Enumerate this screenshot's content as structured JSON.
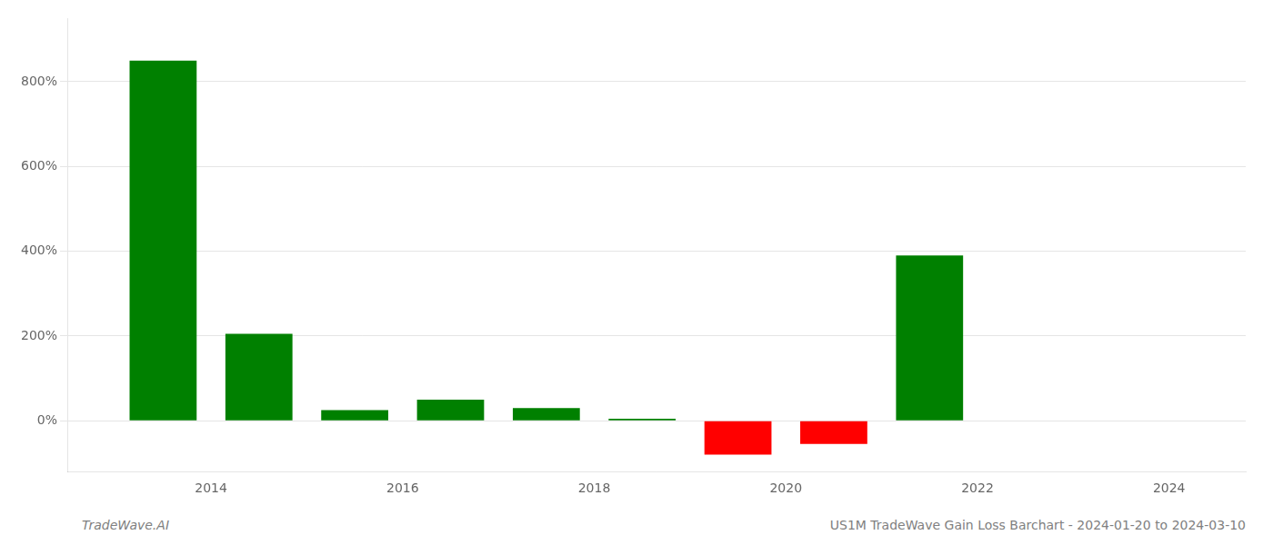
{
  "chart_data": {
    "type": "bar",
    "x": [
      2013.5,
      2014.5,
      2015.5,
      2016.5,
      2017.5,
      2018.5,
      2019.5,
      2020.5,
      2021.5
    ],
    "values": [
      850,
      205,
      25,
      50,
      30,
      5,
      -80,
      -55,
      390
    ],
    "colors": [
      "#008000",
      "#008000",
      "#008000",
      "#008000",
      "#008000",
      "#008000",
      "#ff0000",
      "#ff0000",
      "#008000"
    ],
    "xlim": [
      2012.5,
      2024.8
    ],
    "xticks": [
      2014,
      2016,
      2018,
      2020,
      2022,
      2024
    ],
    "ylim": [
      -120,
      950
    ],
    "yticks": [
      {
        "value": 0,
        "label": "0%"
      },
      {
        "value": 200,
        "label": "200%"
      },
      {
        "value": 400,
        "label": "400%"
      },
      {
        "value": 600,
        "label": "600%"
      },
      {
        "value": 800,
        "label": "800%"
      }
    ],
    "grid": "y",
    "annotations": [
      "TradeWave.AI",
      "US1M TradeWave Gain Loss Barchart - 2024-01-20 to 2024-03-10"
    ]
  }
}
